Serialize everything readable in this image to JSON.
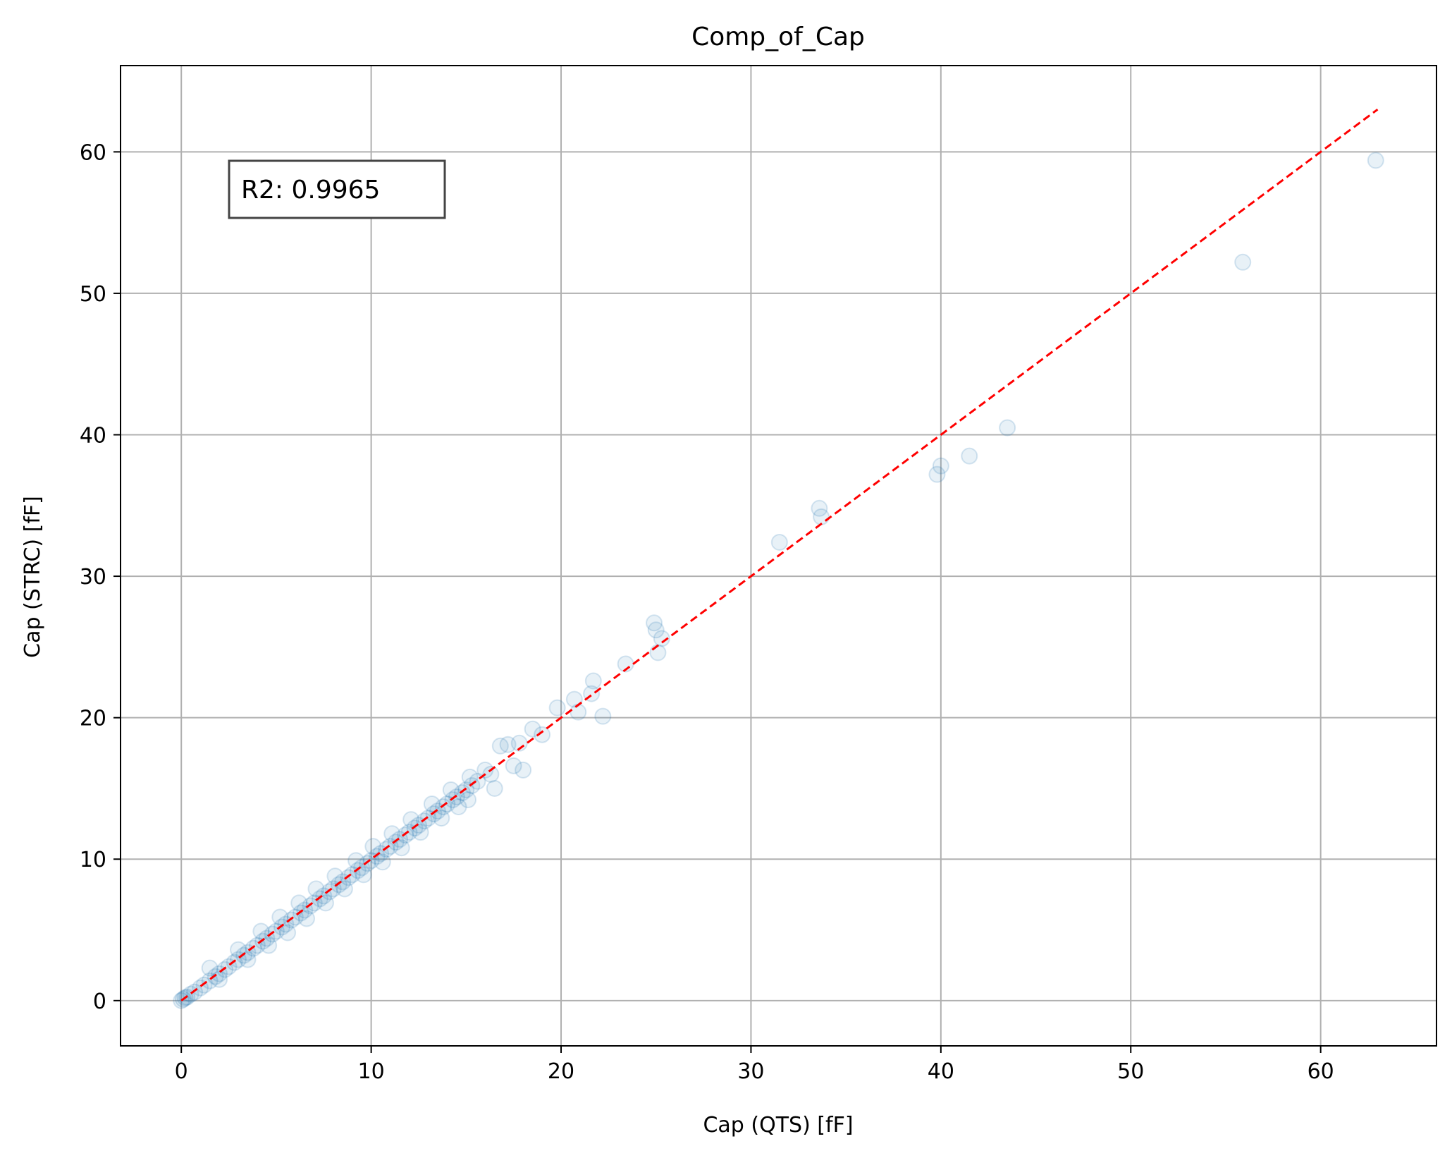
{
  "chart_data": {
    "type": "scatter",
    "title": "Comp_of_Cap",
    "xlabel": "Cap (QTS) [fF]",
    "ylabel": "Cap (STRC) [fF]",
    "xlim": [
      -3.2,
      66.1
    ],
    "ylim": [
      -3.2,
      66.1
    ],
    "xticks": [
      0,
      10,
      20,
      30,
      40,
      50,
      60
    ],
    "yticks": [
      0,
      10,
      20,
      30,
      40,
      50,
      60
    ],
    "grid": true,
    "annotation": "R2: 0.9965",
    "reference_line": {
      "x": [
        0,
        63
      ],
      "y": [
        0,
        63
      ],
      "color": "#ff0000",
      "style": "dashed"
    },
    "marker_color": "#1f77b4",
    "series": [
      {
        "points": [
          [
            0.0,
            0.0
          ],
          [
            0.1,
            0.1
          ],
          [
            0.2,
            0.2
          ],
          [
            0.3,
            0.25
          ],
          [
            0.5,
            0.45
          ],
          [
            0.7,
            0.6
          ],
          [
            1.0,
            0.9
          ],
          [
            1.2,
            1.1
          ],
          [
            1.5,
            1.4
          ],
          [
            1.8,
            1.7
          ],
          [
            2.0,
            1.9
          ],
          [
            2.3,
            2.2
          ],
          [
            2.5,
            2.4
          ],
          [
            2.8,
            2.7
          ],
          [
            3.0,
            2.9
          ],
          [
            3.3,
            3.2
          ],
          [
            3.5,
            3.4
          ],
          [
            3.8,
            3.7
          ],
          [
            4.0,
            3.9
          ],
          [
            4.3,
            4.2
          ],
          [
            4.5,
            4.4
          ],
          [
            4.8,
            4.7
          ],
          [
            5.0,
            4.9
          ],
          [
            5.3,
            5.2
          ],
          [
            5.5,
            5.4
          ],
          [
            5.8,
            5.7
          ],
          [
            6.0,
            5.9
          ],
          [
            6.3,
            6.2
          ],
          [
            6.5,
            6.4
          ],
          [
            6.8,
            6.7
          ],
          [
            7.0,
            6.9
          ],
          [
            7.3,
            7.2
          ],
          [
            7.5,
            7.4
          ],
          [
            7.8,
            7.7
          ],
          [
            8.0,
            7.9
          ],
          [
            8.3,
            8.2
          ],
          [
            8.5,
            8.4
          ],
          [
            8.8,
            8.7
          ],
          [
            9.0,
            8.9
          ],
          [
            9.3,
            9.2
          ],
          [
            9.5,
            9.4
          ],
          [
            9.8,
            9.7
          ],
          [
            10.0,
            9.9
          ],
          [
            10.3,
            10.2
          ],
          [
            10.5,
            10.4
          ],
          [
            10.8,
            10.7
          ],
          [
            11.0,
            10.9
          ],
          [
            11.3,
            11.2
          ],
          [
            11.5,
            11.4
          ],
          [
            11.8,
            11.7
          ],
          [
            12.0,
            11.9
          ],
          [
            12.3,
            12.2
          ],
          [
            12.5,
            12.4
          ],
          [
            12.8,
            12.7
          ],
          [
            13.0,
            12.9
          ],
          [
            13.3,
            13.2
          ],
          [
            13.5,
            13.4
          ],
          [
            13.8,
            13.7
          ],
          [
            14.0,
            13.9
          ],
          [
            14.3,
            14.2
          ],
          [
            14.5,
            14.4
          ],
          [
            14.8,
            14.7
          ],
          [
            15.0,
            14.9
          ],
          [
            15.3,
            15.2
          ],
          [
            15.6,
            15.5
          ],
          [
            16.0,
            16.3
          ],
          [
            16.3,
            16.0
          ],
          [
            1.5,
            2.3
          ],
          [
            2.0,
            1.5
          ],
          [
            3.0,
            3.6
          ],
          [
            3.5,
            2.9
          ],
          [
            4.2,
            4.9
          ],
          [
            4.6,
            3.9
          ],
          [
            5.2,
            5.9
          ],
          [
            5.6,
            4.8
          ],
          [
            6.2,
            6.9
          ],
          [
            6.6,
            5.8
          ],
          [
            7.1,
            7.9
          ],
          [
            7.6,
            6.9
          ],
          [
            8.1,
            8.8
          ],
          [
            8.6,
            7.9
          ],
          [
            9.2,
            9.9
          ],
          [
            9.6,
            8.9
          ],
          [
            10.1,
            10.9
          ],
          [
            10.6,
            9.8
          ],
          [
            11.1,
            11.8
          ],
          [
            11.6,
            10.8
          ],
          [
            12.1,
            12.8
          ],
          [
            12.6,
            11.9
          ],
          [
            13.2,
            13.9
          ],
          [
            13.7,
            12.9
          ],
          [
            14.2,
            14.9
          ],
          [
            14.6,
            13.7
          ],
          [
            15.2,
            15.8
          ],
          [
            15.1,
            14.2
          ],
          [
            16.5,
            15.0
          ],
          [
            16.8,
            18.0
          ],
          [
            17.2,
            18.1
          ],
          [
            17.5,
            16.6
          ],
          [
            17.8,
            18.2
          ],
          [
            18.0,
            16.3
          ],
          [
            18.5,
            19.2
          ],
          [
            19.0,
            18.8
          ],
          [
            19.8,
            20.7
          ],
          [
            20.7,
            21.3
          ],
          [
            20.9,
            20.4
          ],
          [
            21.7,
            22.6
          ],
          [
            21.6,
            21.7
          ],
          [
            22.2,
            20.1
          ],
          [
            23.4,
            23.8
          ],
          [
            24.9,
            26.7
          ],
          [
            25.0,
            26.2
          ],
          [
            25.1,
            24.6
          ],
          [
            25.3,
            25.6
          ],
          [
            31.5,
            32.4
          ],
          [
            33.6,
            34.8
          ],
          [
            33.7,
            34.2
          ],
          [
            39.8,
            37.2
          ],
          [
            40.0,
            37.8
          ],
          [
            41.5,
            38.5
          ],
          [
            43.5,
            40.5
          ],
          [
            55.9,
            52.2
          ],
          [
            62.9,
            59.4
          ]
        ]
      }
    ]
  }
}
